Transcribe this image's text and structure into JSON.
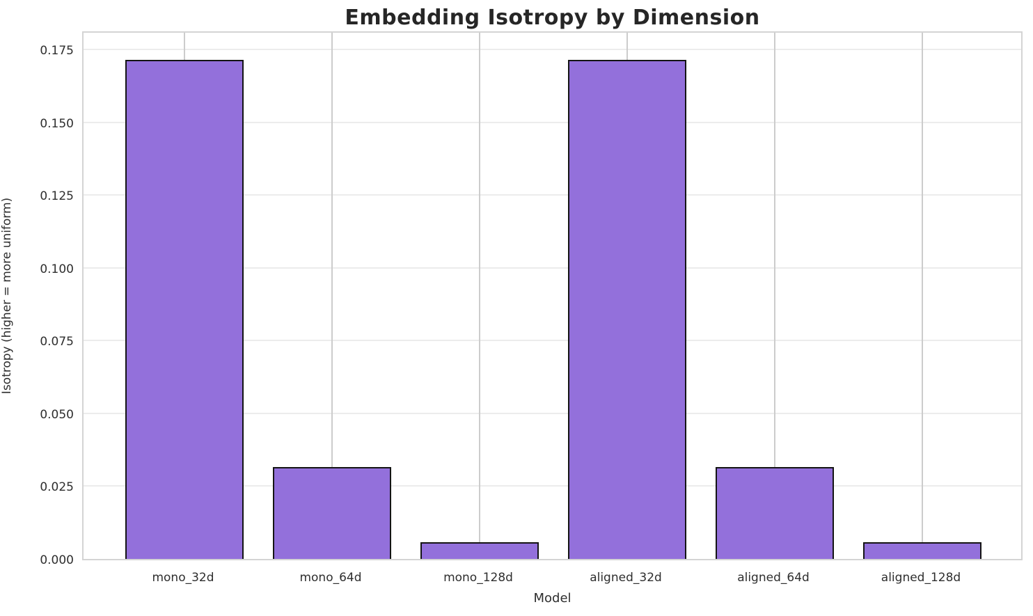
{
  "chart_data": {
    "type": "bar",
    "title": "Embedding Isotropy by Dimension",
    "xlabel": "Model",
    "ylabel": "Isotropy (higher = more uniform)",
    "categories": [
      "mono_32d",
      "mono_64d",
      "mono_128d",
      "aligned_32d",
      "aligned_64d",
      "aligned_128d"
    ],
    "values": [
      0.1715,
      0.0316,
      0.0057,
      0.1715,
      0.0316,
      0.0057
    ],
    "ylim": [
      0,
      0.1817
    ],
    "yticks": [
      0.0,
      0.025,
      0.05,
      0.075,
      0.1,
      0.125,
      0.15,
      0.175
    ],
    "ytick_labels": [
      "0.000",
      "0.025",
      "0.050",
      "0.075",
      "0.100",
      "0.125",
      "0.150",
      "0.175"
    ],
    "grid": true,
    "legend": null,
    "bar_color": "#9370DB",
    "bar_edge_color": "#141414",
    "grid_color_h": "#ececec",
    "grid_color_v": "#cccccc",
    "title_color": "#262626",
    "tick_color": "#2e2e2e"
  }
}
